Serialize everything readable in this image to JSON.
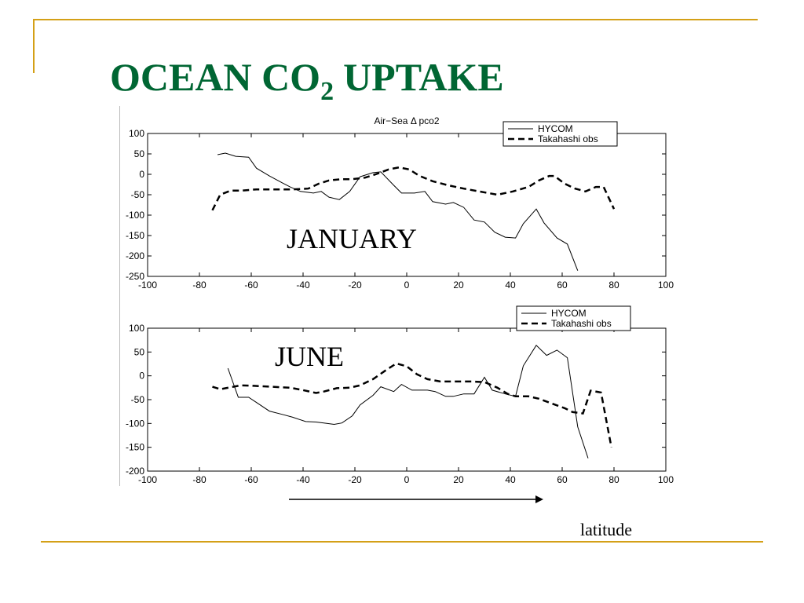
{
  "slide": {
    "title": {
      "text": "OCEAN CO",
      "subscript": "2",
      "rest": "UPTAKE"
    },
    "caption": "latitude"
  },
  "chart_data": [
    {
      "type": "line",
      "title": "Air−Sea Δ pco2",
      "annotations": [
        "JANUARY"
      ],
      "legend": "upper right",
      "xlim": [
        -100,
        100
      ],
      "xticks": [
        -100,
        -80,
        -60,
        -40,
        -20,
        0,
        20,
        40,
        60,
        80,
        100
      ],
      "ylim": [
        -250,
        100
      ],
      "yticks": [
        -250,
        -200,
        -150,
        -100,
        -50,
        0,
        50,
        100
      ],
      "series": [
        {
          "name": "HYCOM",
          "color": "#000000",
          "dash": false,
          "x": [
            -73,
            -70,
            -66,
            -61,
            -58,
            -53,
            -48,
            -45,
            -41,
            -36,
            -33,
            -30,
            -26,
            -22,
            -18,
            -13,
            -10,
            -5,
            -2,
            3,
            7,
            10,
            15,
            18,
            22,
            26,
            30,
            34,
            38,
            42,
            45,
            50,
            53,
            58,
            62,
            66
          ],
          "values": [
            48,
            52,
            44,
            42,
            15,
            -4,
            -21,
            -31,
            -42,
            -46,
            -42,
            -56,
            -62,
            -42,
            -6,
            4,
            6,
            -27,
            -46,
            -46,
            -42,
            -67,
            -73,
            -69,
            -81,
            -112,
            -117,
            -142,
            -154,
            -156,
            -121,
            -85,
            -119,
            -156,
            -171,
            -236
          ]
        },
        {
          "name": "Takahashi obs",
          "color": "#000000",
          "dash": true,
          "x": [
            -75,
            -72,
            -68,
            -64,
            -58,
            -51,
            -44,
            -38,
            -34,
            -30,
            -25,
            -21,
            -16,
            -12,
            -7,
            -3,
            1,
            5,
            10,
            16,
            22,
            28,
            35,
            41,
            47,
            51,
            55,
            57,
            61,
            65,
            69,
            73,
            76,
            80
          ],
          "values": [
            -88,
            -50,
            -40,
            -40,
            -37,
            -37,
            -37,
            -35,
            -23,
            -15,
            -12,
            -12,
            -8,
            0,
            12,
            17,
            12,
            -4,
            -17,
            -27,
            -35,
            -42,
            -50,
            -42,
            -31,
            -15,
            -4,
            -4,
            -23,
            -35,
            -42,
            -31,
            -31,
            -85
          ]
        }
      ]
    },
    {
      "type": "line",
      "annotations": [
        "JUNE"
      ],
      "legend": "upper right",
      "xlim": [
        -100,
        100
      ],
      "xticks": [
        -100,
        -80,
        -60,
        -40,
        -20,
        0,
        20,
        40,
        60,
        80,
        100
      ],
      "ylim": [
        -200,
        100
      ],
      "yticks": [
        -200,
        -150,
        -100,
        -50,
        0,
        50,
        100
      ],
      "series": [
        {
          "name": "HYCOM",
          "color": "#000000",
          "dash": false,
          "x": [
            -69,
            -65,
            -61,
            -58,
            -53,
            -48,
            -44,
            -39,
            -35,
            -32,
            -28,
            -25,
            -21,
            -18,
            -13,
            -10,
            -5,
            -2,
            2,
            8,
            11,
            15,
            18,
            22,
            26,
            30,
            33,
            38,
            42,
            45,
            50,
            54,
            58,
            62,
            66,
            70
          ],
          "values": [
            16,
            -45,
            -45,
            -56,
            -74,
            -81,
            -87,
            -96,
            -97,
            -99,
            -102,
            -99,
            -84,
            -61,
            -41,
            -23,
            -33,
            -18,
            -30,
            -30,
            -33,
            -43,
            -43,
            -38,
            -38,
            -3,
            -30,
            -38,
            -43,
            21,
            64,
            43,
            54,
            38,
            -107,
            -173
          ]
        },
        {
          "name": "Takahashi obs",
          "color": "#000000",
          "dash": true,
          "x": [
            -75,
            -72,
            -67,
            -64,
            -59,
            -52,
            -45,
            -40,
            -35,
            -32,
            -27,
            -22,
            -18,
            -13,
            -8,
            -4,
            0,
            4,
            8,
            13,
            19,
            25,
            30,
            35,
            39,
            42,
            47,
            51,
            56,
            61,
            64,
            68,
            71,
            75,
            79
          ],
          "values": [
            -23,
            -28,
            -23,
            -20,
            -21,
            -23,
            -25,
            -30,
            -36,
            -33,
            -26,
            -25,
            -20,
            -7,
            12,
            26,
            20,
            3,
            -7,
            -12,
            -12,
            -12,
            -13,
            -25,
            -38,
            -43,
            -43,
            -48,
            -58,
            -68,
            -76,
            -79,
            -31,
            -35,
            -150
          ]
        }
      ]
    }
  ]
}
